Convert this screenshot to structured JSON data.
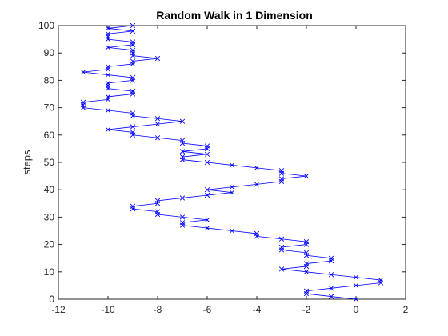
{
  "chart_data": {
    "type": "line",
    "title": "Random Walk in 1 Dimension",
    "xlabel": "",
    "ylabel": "steps",
    "xlim": [
      -12,
      2
    ],
    "ylim": [
      0,
      100
    ],
    "xticks": [
      -12,
      -10,
      -8,
      -6,
      -4,
      -2,
      0,
      2
    ],
    "yticks": [
      0,
      10,
      20,
      30,
      40,
      50,
      60,
      70,
      80,
      90,
      100
    ],
    "marker": "x",
    "grid": false,
    "series": [
      {
        "color": "#0000ff",
        "x": [
          0,
          -1,
          -2,
          -2,
          -1,
          0,
          1,
          1,
          0,
          -1,
          -2,
          -3,
          -2,
          -2,
          -1,
          -1,
          -2,
          -2,
          -3,
          -3,
          -2,
          -2,
          -3,
          -4,
          -4,
          -5,
          -6,
          -7,
          -7,
          -6,
          -7,
          -8,
          -8,
          -9,
          -9,
          -8,
          -8,
          -7,
          -6,
          -5,
          -6,
          -5,
          -4,
          -3,
          -3,
          -2,
          -3,
          -3,
          -4,
          -5,
          -6,
          -7,
          -7,
          -6,
          -7,
          -6,
          -6,
          -7,
          -7,
          -8,
          -9,
          -9,
          -10,
          -9,
          -8,
          -7,
          -8,
          -9,
          -9,
          -10,
          -11,
          -11,
          -11,
          -10,
          -10,
          -9,
          -9,
          -10,
          -10,
          -10,
          -9,
          -9,
          -10,
          -11,
          -10,
          -10,
          -9,
          -9,
          -8,
          -9,
          -9,
          -9,
          -10,
          -9,
          -9,
          -10,
          -10,
          -10,
          -9,
          -10,
          -9
        ],
        "y": [
          0,
          1,
          2,
          3,
          4,
          5,
          6,
          7,
          8,
          9,
          10,
          11,
          12,
          13,
          14,
          15,
          16,
          17,
          18,
          19,
          20,
          21,
          22,
          23,
          24,
          25,
          26,
          27,
          28,
          29,
          30,
          31,
          32,
          33,
          34,
          35,
          36,
          37,
          38,
          39,
          40,
          41,
          42,
          43,
          44,
          45,
          46,
          47,
          48,
          49,
          50,
          51,
          52,
          53,
          54,
          55,
          56,
          57,
          58,
          59,
          60,
          61,
          62,
          63,
          64,
          65,
          66,
          67,
          68,
          69,
          70,
          71,
          72,
          73,
          74,
          75,
          76,
          77,
          78,
          79,
          80,
          81,
          82,
          83,
          84,
          85,
          86,
          87,
          88,
          89,
          90,
          91,
          92,
          93,
          94,
          95,
          96,
          97,
          98,
          99,
          100
        ]
      }
    ]
  }
}
